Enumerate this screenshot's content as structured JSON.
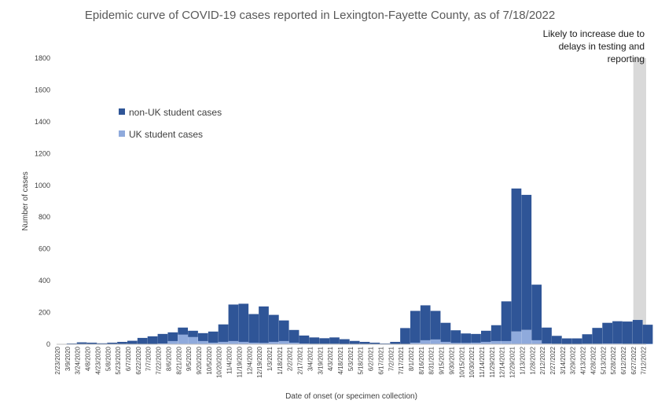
{
  "chart_data": {
    "type": "bar",
    "title": "Epidemic curve of COVID-19 cases reported in Lexington-Fayette County, as of 7/18/2022",
    "xlabel": "Date of onset (or specimen collection)",
    "ylabel": "Number of cases",
    "ylim": [
      0,
      1800
    ],
    "y_ticks": [
      0,
      200,
      400,
      600,
      800,
      1000,
      1200,
      1400,
      1600,
      1800
    ],
    "grid": false,
    "stacked": true,
    "legend_position": "upper-left",
    "x_start": "2/23/2020",
    "x_end": "7/17/2022",
    "x_tick_labels": [
      "2/23/2020",
      "3/9/2020",
      "3/24/2020",
      "4/8/2020",
      "4/23/2020",
      "5/8/2020",
      "5/23/2020",
      "6/7/2020",
      "6/22/2020",
      "7/7/2020",
      "7/22/2020",
      "8/6/2020",
      "8/21/2020",
      "9/5/2020",
      "9/20/2020",
      "10/5/2020",
      "10/20/2020",
      "11/4/2020",
      "11/19/2020",
      "12/4/2020",
      "12/19/2020",
      "1/3/2021",
      "1/18/2021",
      "2/2/2021",
      "2/17/2021",
      "3/4/2021",
      "3/19/2021",
      "4/3/2021",
      "4/18/2021",
      "5/3/2021",
      "5/18/2021",
      "6/2/2021",
      "6/17/2021",
      "7/2/2021",
      "7/17/2021",
      "8/1/2021",
      "8/16/2021",
      "8/31/2021",
      "9/15/2021",
      "9/30/2021",
      "10/15/2021",
      "10/30/2021",
      "11/14/2021",
      "11/29/2021",
      "12/14/2021",
      "12/29/2021",
      "1/13/2022",
      "1/28/2022",
      "2/12/2022",
      "2/27/2022",
      "3/14/2022",
      "3/29/2022",
      "4/13/2022",
      "4/28/2022",
      "5/13/2022",
      "5/28/2022",
      "6/12/2022",
      "6/27/2022",
      "7/12/2022"
    ],
    "series": [
      {
        "name": "non-UK student cases",
        "color": "#2f5597",
        "dates": [
          "2/23/2020",
          "3/9/2020",
          "3/24/2020",
          "4/8/2020",
          "4/23/2020",
          "5/8/2020",
          "5/23/2020",
          "6/7/2020",
          "6/22/2020",
          "7/7/2020",
          "7/22/2020",
          "8/6/2020",
          "8/21/2020",
          "9/5/2020",
          "9/20/2020",
          "10/5/2020",
          "10/20/2020",
          "11/4/2020",
          "11/19/2020",
          "12/4/2020",
          "12/19/2020",
          "1/3/2021",
          "1/18/2021",
          "2/2/2021",
          "2/17/2021",
          "3/4/2021",
          "3/19/2021",
          "4/3/2021",
          "4/18/2021",
          "5/3/2021",
          "5/18/2021",
          "6/2/2021",
          "6/17/2021",
          "7/2/2021",
          "7/17/2021",
          "8/1/2021",
          "8/16/2021",
          "8/31/2021",
          "9/15/2021",
          "9/30/2021",
          "10/15/2021",
          "10/30/2021",
          "11/14/2021",
          "11/29/2021",
          "12/14/2021",
          "12/29/2021",
          "1/13/2022",
          "1/28/2022",
          "2/12/2022",
          "2/27/2022",
          "3/14/2022",
          "3/29/2022",
          "4/13/2022",
          "4/28/2022",
          "5/13/2022",
          "5/28/2022",
          "6/12/2022",
          "6/27/2022",
          "7/12/2022"
        ],
        "values": [
          2,
          5,
          12,
          10,
          6,
          10,
          15,
          22,
          40,
          50,
          60,
          55,
          45,
          40,
          50,
          70,
          110,
          230,
          240,
          180,
          230,
          170,
          130,
          80,
          50,
          40,
          35,
          40,
          30,
          20,
          15,
          10,
          5,
          15,
          100,
          200,
          220,
          180,
          120,
          80,
          60,
          55,
          70,
          100,
          250,
          900,
          850,
          350,
          100,
          50,
          35,
          35,
          60,
          100,
          130,
          140,
          140,
          150,
          120
        ]
      },
      {
        "name": "UK student cases",
        "color": "#8faadc",
        "dates": [
          "2/23/2020",
          "3/9/2020",
          "3/24/2020",
          "4/8/2020",
          "4/23/2020",
          "5/8/2020",
          "5/23/2020",
          "6/7/2020",
          "6/22/2020",
          "7/7/2020",
          "7/22/2020",
          "8/6/2020",
          "8/21/2020",
          "9/5/2020",
          "9/20/2020",
          "10/5/2020",
          "10/20/2020",
          "11/4/2020",
          "11/19/2020",
          "12/4/2020",
          "12/19/2020",
          "1/3/2021",
          "1/18/2021",
          "2/2/2021",
          "2/17/2021",
          "3/4/2021",
          "3/19/2021",
          "4/3/2021",
          "4/18/2021",
          "5/3/2021",
          "5/18/2021",
          "6/2/2021",
          "6/17/2021",
          "7/2/2021",
          "7/17/2021",
          "8/1/2021",
          "8/16/2021",
          "8/31/2021",
          "9/15/2021",
          "9/30/2021",
          "10/15/2021",
          "10/30/2021",
          "11/14/2021",
          "11/29/2021",
          "12/14/2021",
          "12/29/2021",
          "1/13/2022",
          "1/28/2022",
          "2/12/2022",
          "2/27/2022",
          "3/14/2022",
          "3/29/2022",
          "4/13/2022",
          "4/28/2022",
          "5/13/2022",
          "5/28/2022",
          "6/12/2022",
          "6/27/2022",
          "7/12/2022"
        ],
        "values": [
          0,
          0,
          0,
          0,
          0,
          0,
          0,
          0,
          0,
          0,
          5,
          20,
          60,
          45,
          20,
          10,
          15,
          20,
          15,
          10,
          8,
          15,
          20,
          10,
          5,
          3,
          3,
          3,
          2,
          1,
          0,
          0,
          0,
          0,
          2,
          10,
          25,
          30,
          15,
          8,
          8,
          10,
          15,
          20,
          20,
          80,
          90,
          25,
          5,
          3,
          2,
          2,
          3,
          3,
          5,
          5,
          3,
          3,
          3
        ]
      }
    ],
    "shaded_region": {
      "start": "6/28/2022",
      "end": "7/17/2022",
      "color": "#d9d9d9",
      "label": "Likely to increase due to delays in testing and reporting"
    }
  },
  "note_lines": [
    "Likely to increase due to",
    "delays in testing and",
    "reporting"
  ]
}
